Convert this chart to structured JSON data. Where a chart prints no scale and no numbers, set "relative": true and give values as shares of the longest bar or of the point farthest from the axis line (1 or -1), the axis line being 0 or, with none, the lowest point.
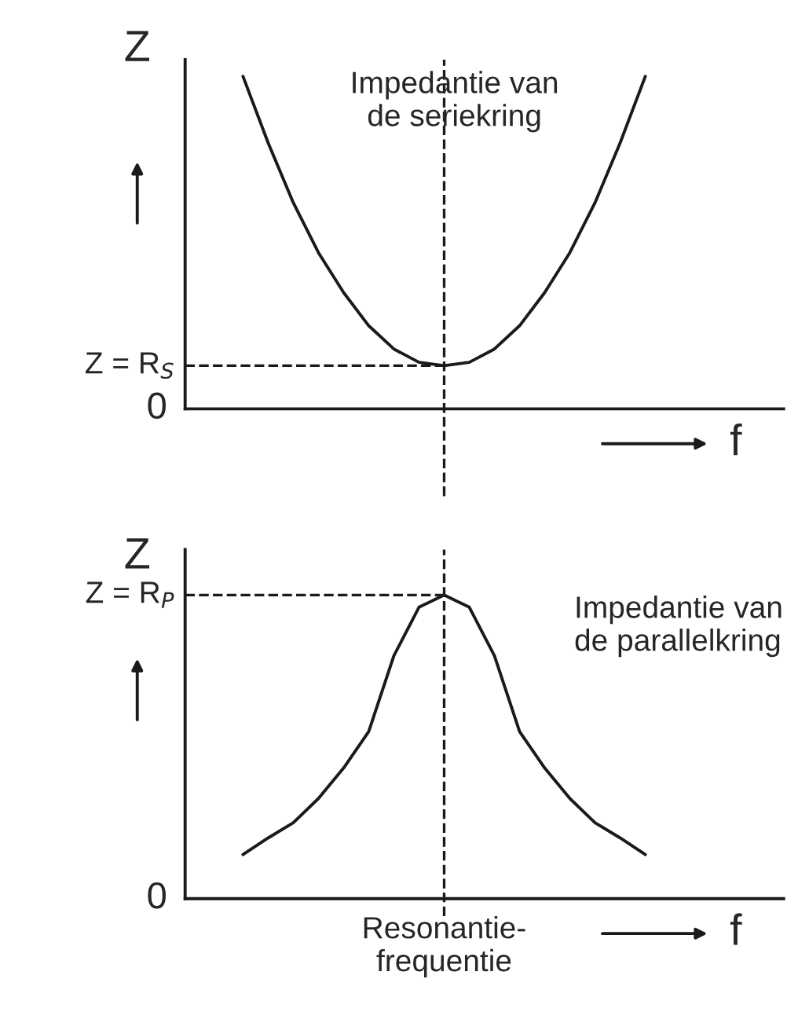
{
  "chart_data": [
    {
      "type": "line",
      "relative": true,
      "categories": [
        null,
        null,
        null,
        null,
        null,
        null,
        null,
        null,
        null,
        null,
        null,
        null,
        null,
        null,
        null,
        null,
        null
      ],
      "series": [
        {
          "color": "#1a1a1a",
          "values": [
            1.0,
            0.8,
            0.62,
            0.47,
            0.35,
            0.25,
            0.18,
            0.14,
            0.13,
            0.14,
            0.18,
            0.25,
            0.35,
            0.47,
            0.62,
            0.8,
            1.0
          ]
        }
      ],
      "ylabel": "Z",
      "xlabel": "f",
      "marker": "none",
      "line_style": "solid",
      "annotations": [
        "Impedantie van\nde seriekring",
        "0"
      ],
      "ref_lines": [
        {
          "axis": "y",
          "value": 0.13,
          "label": "Z = R$_{S}$",
          "line_style": "dashed",
          "color": "#1a1a1a"
        }
      ]
    },
    {
      "type": "line",
      "relative": true,
      "categories": [
        null,
        null,
        null,
        null,
        null,
        null,
        null,
        null,
        null,
        null,
        null,
        null,
        null,
        null,
        null,
        null,
        null
      ],
      "series": [
        {
          "color": "#1a1a1a",
          "values": [
            0.145,
            0.2,
            0.25,
            0.33,
            0.43,
            0.55,
            0.8,
            0.96,
            1.0,
            0.96,
            0.8,
            0.55,
            0.43,
            0.33,
            0.25,
            0.2,
            0.145
          ]
        }
      ],
      "ylabel": "Z",
      "xlabel": "f",
      "marker": "none",
      "line_style": "solid",
      "annotations": [
        "Impedantie van\nde parallelkring",
        "Resonantie-\nfrequentie",
        "0"
      ],
      "ref_lines": [
        {
          "axis": "y",
          "value": 1.0,
          "label": "Z = R$_{P}$",
          "line_style": "dashed",
          "color": "#1a1a1a"
        }
      ]
    }
  ]
}
